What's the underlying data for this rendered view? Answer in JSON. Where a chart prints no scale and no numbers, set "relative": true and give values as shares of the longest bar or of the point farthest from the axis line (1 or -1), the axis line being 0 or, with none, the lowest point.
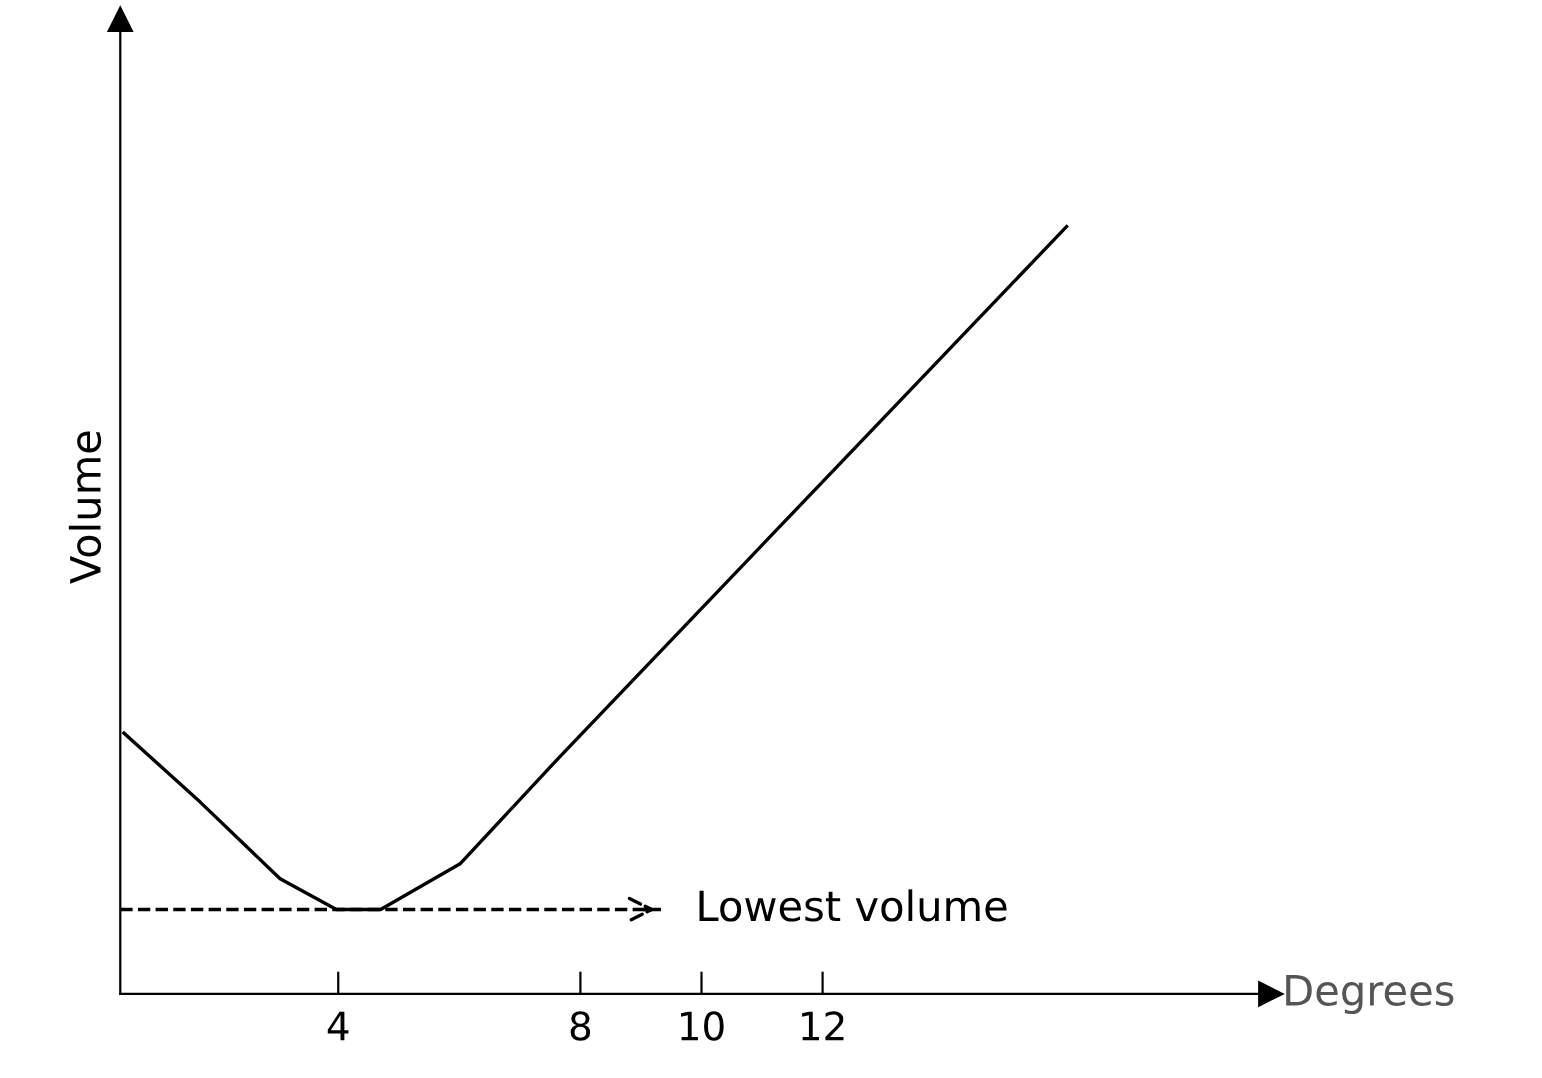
{
  "chart_data": {
    "type": "line",
    "relative": true,
    "xlabel": "Degrees",
    "ylabel": "Volume",
    "x": [
      0.46,
      1.72,
      3.04,
      3.97,
      4.7,
      6.02,
      7.67,
      16.03
    ],
    "values": [
      0.34,
      0.25,
      0.15,
      0.11,
      0.11,
      0.17,
      0.31,
      1.0
    ],
    "color": "#000000",
    "xlim": [
      0.4,
      19.4
    ],
    "xticks": [
      4,
      8,
      10,
      12
    ],
    "ref_lines": [
      {
        "axis": "y",
        "value": 0.11,
        "label": "Lowest volume",
        "color": "#000000",
        "line_style": "dashed"
      }
    ],
    "grid": false,
    "legend": false,
    "marker": "none",
    "line_style": "solid"
  }
}
